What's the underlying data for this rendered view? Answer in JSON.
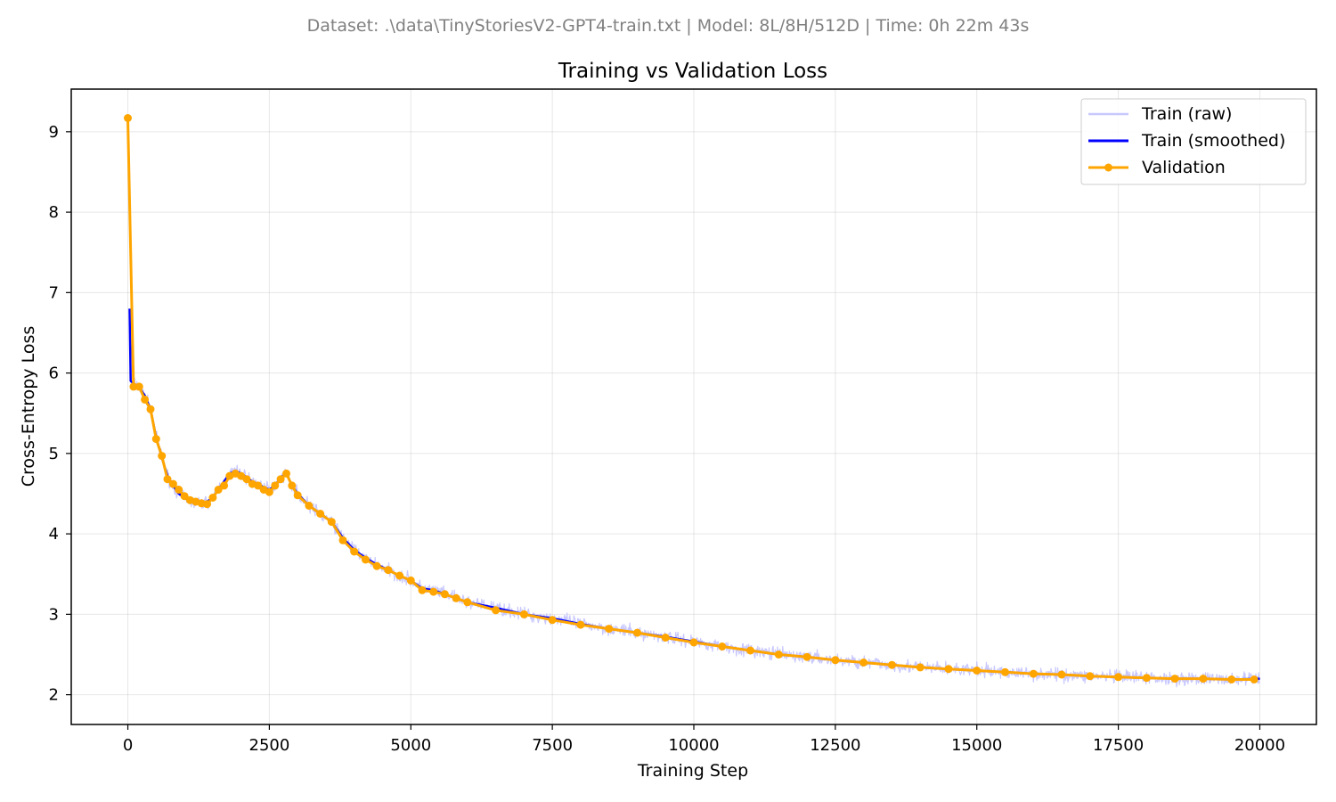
{
  "chart_data": {
    "type": "line",
    "suptitle": "Dataset: .\\data\\TinyStoriesV2-GPT4-train.txt | Model: 8L/8H/512D | Time: 0h 22m 43s",
    "title": "Training vs Validation Loss",
    "xlabel": "Training Step",
    "ylabel": "Cross-Entropy Loss",
    "xlim": [
      -1000,
      21000
    ],
    "ylim": [
      1.63,
      9.53
    ],
    "xticks": [
      0,
      2500,
      5000,
      7500,
      10000,
      12500,
      15000,
      17500,
      20000
    ],
    "xtick_labels": [
      "0",
      "2500",
      "5000",
      "7500",
      "10000",
      "12500",
      "15000",
      "17500",
      "20000"
    ],
    "yticks": [
      2,
      3,
      4,
      5,
      6,
      7,
      8,
      9
    ],
    "ytick_labels": [
      "2",
      "3",
      "4",
      "5",
      "6",
      "7",
      "8",
      "9"
    ],
    "grid": true,
    "legend_position": "top-right",
    "series": [
      {
        "name": "Train (raw)",
        "color": "#c8c8ff",
        "noise_band": 0.12,
        "x": [
          30,
          50,
          100,
          200,
          300,
          400,
          500,
          600,
          700,
          800,
          900,
          1000,
          1100,
          1200,
          1300,
          1400,
          1500,
          1600,
          1700,
          1800,
          1900,
          2000,
          2100,
          2200,
          2300,
          2400,
          2500,
          2600,
          2700,
          2800,
          2900,
          3000,
          3200,
          3400,
          3600,
          3800,
          4000,
          4200,
          4400,
          4600,
          4800,
          5000,
          5200,
          5400,
          5600,
          5800,
          6000,
          6500,
          7000,
          7500,
          8000,
          8500,
          9000,
          9500,
          10000,
          10500,
          11000,
          11500,
          12000,
          12500,
          13000,
          13500,
          14000,
          14500,
          15000,
          15500,
          16000,
          16500,
          17000,
          17500,
          18000,
          18500,
          19000,
          19500,
          20000
        ],
        "y": [
          6.8,
          5.9,
          5.87,
          5.82,
          5.72,
          5.55,
          5.2,
          4.95,
          4.72,
          4.6,
          4.5,
          4.45,
          4.4,
          4.38,
          4.38,
          4.4,
          4.45,
          4.55,
          4.65,
          4.75,
          4.78,
          4.75,
          4.7,
          4.65,
          4.62,
          4.58,
          4.55,
          4.6,
          4.7,
          4.75,
          4.6,
          4.5,
          4.35,
          4.25,
          4.15,
          3.95,
          3.8,
          3.7,
          3.62,
          3.55,
          3.48,
          3.42,
          3.32,
          3.3,
          3.25,
          3.2,
          3.15,
          3.08,
          3.0,
          2.95,
          2.88,
          2.82,
          2.77,
          2.72,
          2.66,
          2.6,
          2.55,
          2.5,
          2.47,
          2.43,
          2.4,
          2.37,
          2.34,
          2.32,
          2.3,
          2.28,
          2.26,
          2.25,
          2.23,
          2.22,
          2.21,
          2.2,
          2.2,
          2.19,
          2.2
        ]
      },
      {
        "name": "Train (smoothed)",
        "color": "#0000ff",
        "x": [
          30,
          50,
          100,
          200,
          300,
          400,
          500,
          600,
          700,
          800,
          900,
          1000,
          1100,
          1200,
          1300,
          1400,
          1500,
          1600,
          1700,
          1800,
          1900,
          2000,
          2100,
          2200,
          2300,
          2400,
          2500,
          2600,
          2700,
          2800,
          2900,
          3000,
          3200,
          3400,
          3600,
          3800,
          4000,
          4200,
          4400,
          4600,
          4800,
          5000,
          5200,
          5400,
          5600,
          5800,
          6000,
          6500,
          7000,
          7500,
          8000,
          8500,
          9000,
          9500,
          10000,
          10500,
          11000,
          11500,
          12000,
          12500,
          13000,
          13500,
          14000,
          14500,
          15000,
          15500,
          16000,
          16500,
          17000,
          17500,
          18000,
          18500,
          19000,
          19500,
          20000
        ],
        "y": [
          6.8,
          5.9,
          5.87,
          5.82,
          5.72,
          5.55,
          5.2,
          4.95,
          4.72,
          4.6,
          4.5,
          4.45,
          4.4,
          4.38,
          4.38,
          4.4,
          4.45,
          4.55,
          4.65,
          4.75,
          4.78,
          4.75,
          4.7,
          4.65,
          4.62,
          4.58,
          4.55,
          4.6,
          4.7,
          4.75,
          4.6,
          4.5,
          4.35,
          4.25,
          4.15,
          3.95,
          3.8,
          3.7,
          3.62,
          3.55,
          3.48,
          3.42,
          3.32,
          3.3,
          3.25,
          3.2,
          3.15,
          3.08,
          3.0,
          2.95,
          2.88,
          2.82,
          2.77,
          2.72,
          2.66,
          2.6,
          2.55,
          2.5,
          2.47,
          2.43,
          2.4,
          2.37,
          2.34,
          2.32,
          2.3,
          2.28,
          2.26,
          2.25,
          2.23,
          2.22,
          2.21,
          2.2,
          2.2,
          2.19,
          2.2
        ]
      },
      {
        "name": "Validation",
        "color": "#ffa500",
        "marker": "circle",
        "x": [
          0,
          100,
          200,
          300,
          400,
          500,
          600,
          700,
          800,
          900,
          1000,
          1100,
          1200,
          1300,
          1400,
          1500,
          1600,
          1700,
          1800,
          1900,
          2000,
          2100,
          2200,
          2300,
          2400,
          2500,
          2600,
          2700,
          2800,
          2900,
          3000,
          3200,
          3400,
          3600,
          3800,
          4000,
          4200,
          4400,
          4600,
          4800,
          5000,
          5200,
          5400,
          5600,
          5800,
          6000,
          6500,
          7000,
          7500,
          8000,
          8500,
          9000,
          9500,
          10000,
          10500,
          11000,
          11500,
          12000,
          12500,
          13000,
          13500,
          14000,
          14500,
          15000,
          15500,
          16000,
          16500,
          17000,
          17500,
          18000,
          18500,
          19000,
          19500,
          19900
        ],
        "y": [
          9.17,
          5.83,
          5.83,
          5.67,
          5.55,
          5.18,
          4.97,
          4.68,
          4.62,
          4.55,
          4.47,
          4.42,
          4.4,
          4.38,
          4.37,
          4.45,
          4.55,
          4.6,
          4.72,
          4.75,
          4.72,
          4.68,
          4.62,
          4.6,
          4.55,
          4.52,
          4.6,
          4.68,
          4.75,
          4.6,
          4.48,
          4.35,
          4.25,
          4.15,
          3.92,
          3.78,
          3.68,
          3.6,
          3.55,
          3.48,
          3.42,
          3.3,
          3.28,
          3.25,
          3.2,
          3.15,
          3.05,
          3.0,
          2.93,
          2.87,
          2.82,
          2.77,
          2.71,
          2.65,
          2.6,
          2.55,
          2.5,
          2.47,
          2.43,
          2.4,
          2.37,
          2.34,
          2.32,
          2.3,
          2.28,
          2.26,
          2.25,
          2.23,
          2.22,
          2.21,
          2.2,
          2.2,
          2.19,
          2.19
        ]
      }
    ]
  }
}
